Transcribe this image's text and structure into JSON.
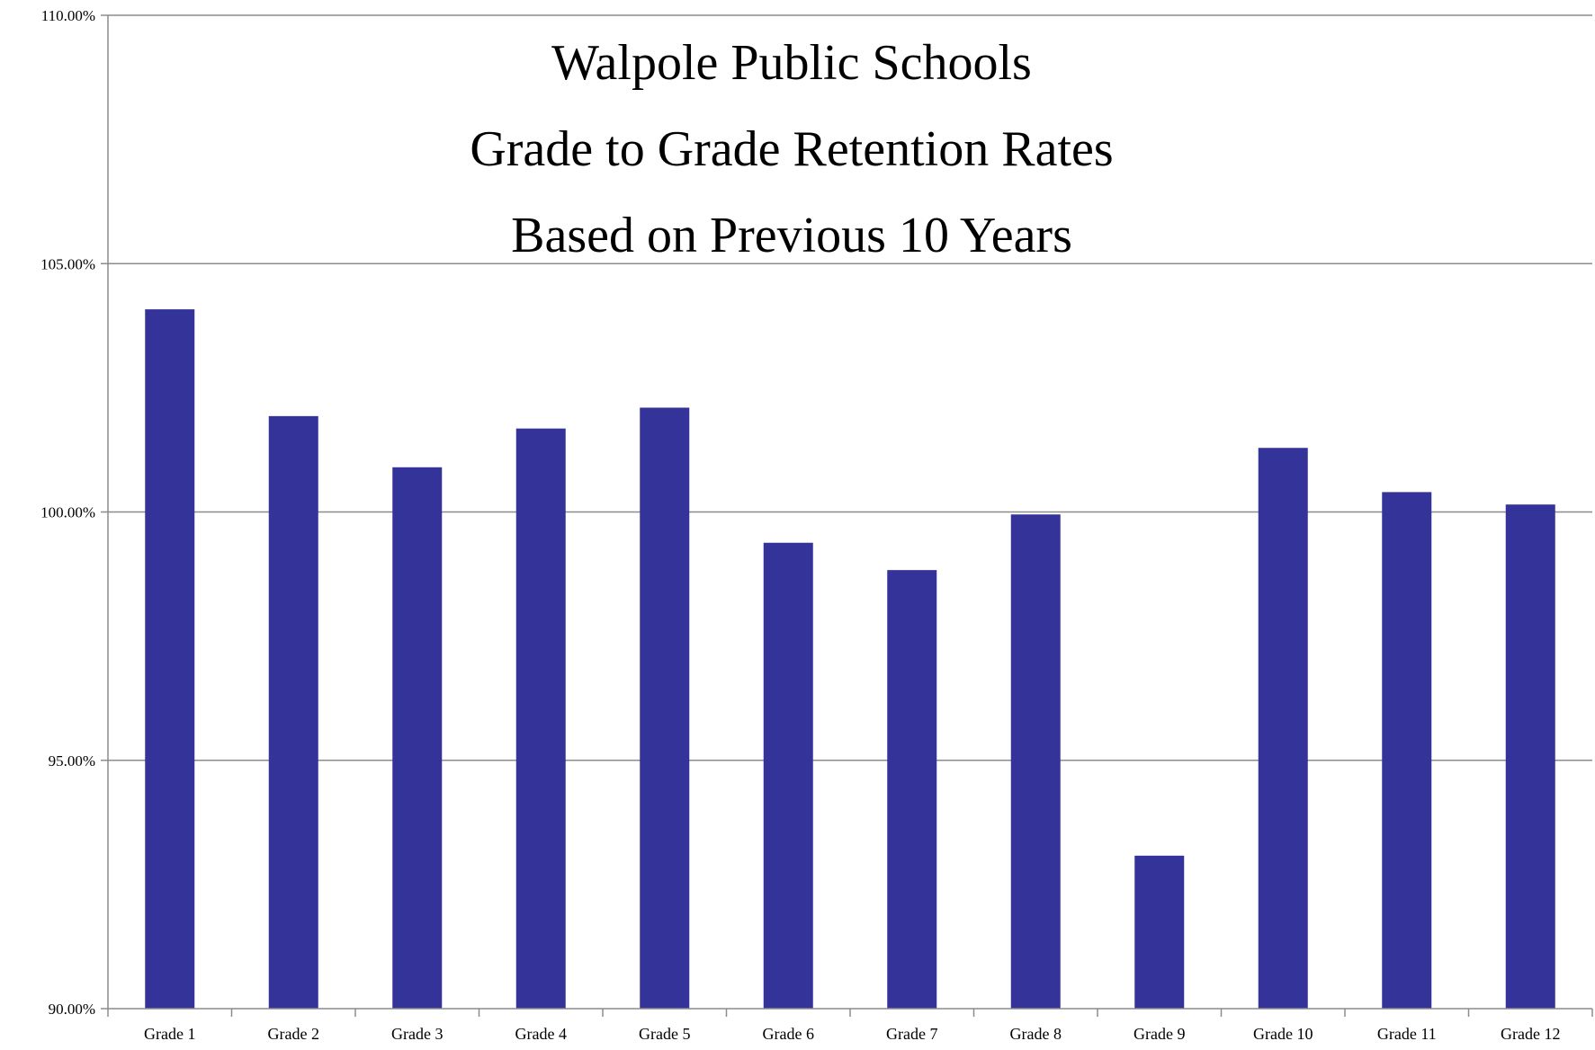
{
  "chart_data": {
    "type": "bar",
    "title_lines": [
      "Walpole Public Schools",
      "Grade to Grade Retention Rates",
      "Based on Previous 10 Years"
    ],
    "xlabel": "",
    "ylabel": "",
    "categories": [
      "Grade 1",
      "Grade 2",
      "Grade 3",
      "Grade 4",
      "Grade 5",
      "Grade 6",
      "Grade 7",
      "Grade 8",
      "Grade 9",
      "Grade 10",
      "Grade 11",
      "Grade 12"
    ],
    "series": [
      {
        "values": [
          104.08,
          101.93,
          100.9,
          101.68,
          102.1,
          99.38,
          98.83,
          99.95,
          93.08,
          101.29,
          100.4,
          100.15
        ]
      }
    ],
    "ylim": [
      90,
      110
    ],
    "y_ticks": [
      90,
      95,
      100,
      105,
      110
    ],
    "y_tick_labels": [
      "90.00%",
      "95.00%",
      "100.00%",
      "105.00%",
      "110.00%"
    ],
    "grid": "horizontal",
    "legend": "none",
    "colors": {
      "bar": "#333399",
      "gridline": "#8c8c8c",
      "axis": "#8c8c8c"
    }
  }
}
